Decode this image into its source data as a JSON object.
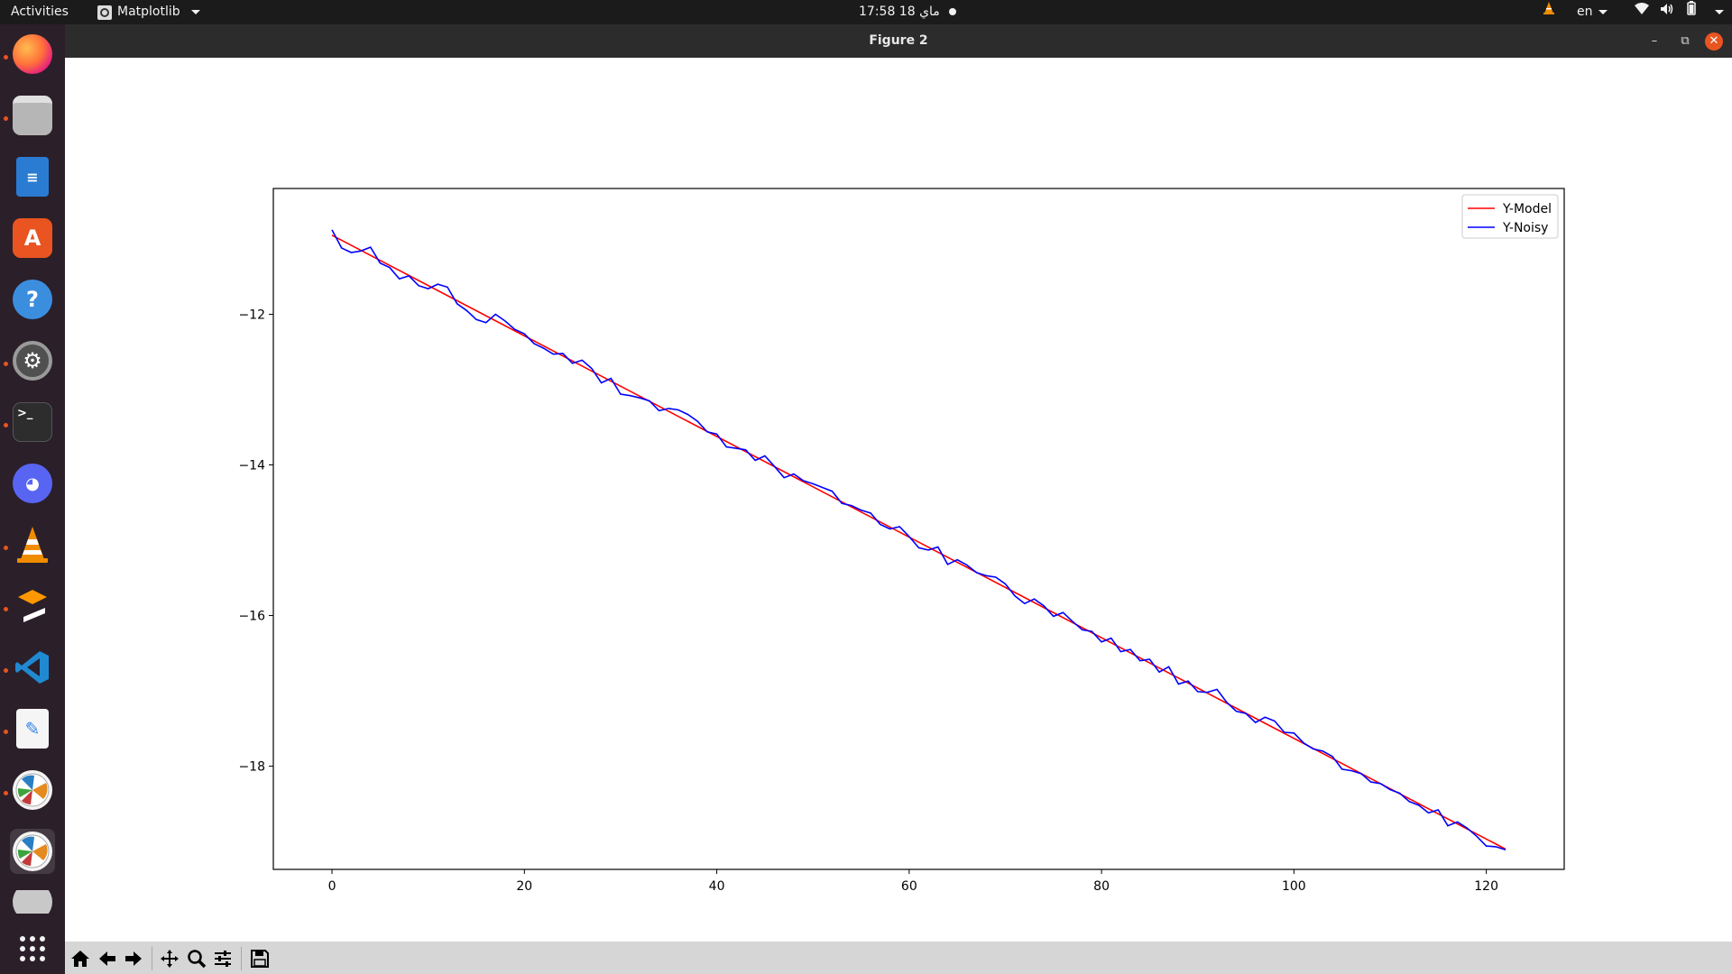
{
  "topbar": {
    "activities": "Activities",
    "app_menu": "Matplotlib",
    "clock": "17:58  ماي 18",
    "language": "en"
  },
  "dock": {
    "items": [
      {
        "name": "firefox",
        "running": true
      },
      {
        "name": "files",
        "running": true
      },
      {
        "name": "libreoffice-writer",
        "running": false
      },
      {
        "name": "ubuntu-software",
        "running": false
      },
      {
        "name": "help",
        "running": false
      },
      {
        "name": "settings",
        "running": true
      },
      {
        "name": "terminal",
        "running": true
      },
      {
        "name": "discord",
        "running": false
      },
      {
        "name": "vlc",
        "running": true
      },
      {
        "name": "sublime-text",
        "running": true
      },
      {
        "name": "vscode",
        "running": true
      },
      {
        "name": "text-editor",
        "running": true
      },
      {
        "name": "matplotlib-figure-1",
        "running": true
      },
      {
        "name": "matplotlib-figure-2",
        "running": true
      }
    ]
  },
  "window": {
    "title": "Figure 2"
  },
  "chart_data": {
    "type": "line",
    "title": "",
    "xlabel": "",
    "ylabel": "",
    "xlim": [
      -6.1,
      128.1
    ],
    "ylim": [
      -19.37,
      -10.33
    ],
    "xticks": [
      0,
      20,
      40,
      60,
      80,
      100,
      120
    ],
    "yticks": [
      -12,
      -14,
      -16,
      -18
    ],
    "xtick_labels": [
      "0",
      "20",
      "40",
      "60",
      "80",
      "100",
      "120"
    ],
    "ytick_labels": [
      "−12",
      "−14",
      "−16",
      "−18"
    ],
    "legend": {
      "position": "upper right"
    },
    "grid": false,
    "series": [
      {
        "name": "Y-Model",
        "color": "#ff0000",
        "x": [
          0,
          122
        ],
        "y": [
          -10.95,
          -19.1
        ]
      },
      {
        "name": "Y-Noisy",
        "color": "#0000ff",
        "x": [
          0,
          1,
          2,
          3,
          4,
          5,
          6,
          7,
          8,
          9,
          10,
          11,
          12,
          13,
          14,
          15,
          16,
          17,
          18,
          19,
          20,
          21,
          22,
          23,
          24,
          25,
          26,
          27,
          28,
          29,
          30,
          31,
          32,
          33,
          34,
          35,
          36,
          37,
          38,
          39,
          40,
          41,
          42,
          43,
          44,
          45,
          46,
          47,
          48,
          49,
          50,
          51,
          52,
          53,
          54,
          55,
          56,
          57,
          58,
          59,
          60,
          61,
          62,
          63,
          64,
          65,
          66,
          67,
          68,
          69,
          70,
          71,
          72,
          73,
          74,
          75,
          76,
          77,
          78,
          79,
          80,
          81,
          82,
          83,
          84,
          85,
          86,
          87,
          88,
          89,
          90,
          91,
          92,
          93,
          94,
          95,
          96,
          97,
          98,
          99,
          100,
          101,
          102,
          103,
          104,
          105,
          106,
          107,
          108,
          109,
          110,
          111,
          112,
          113,
          114,
          115,
          116,
          117,
          118,
          119,
          120,
          121,
          122
        ],
        "y": [
          -10.88,
          -11.12,
          -11.18,
          -11.16,
          -11.11,
          -11.32,
          -11.38,
          -11.53,
          -11.49,
          -11.62,
          -11.66,
          -11.6,
          -11.64,
          -11.86,
          -11.95,
          -12.07,
          -12.11,
          -12.0,
          -12.09,
          -12.2,
          -12.26,
          -12.39,
          -12.45,
          -12.53,
          -12.52,
          -12.65,
          -12.61,
          -12.72,
          -12.91,
          -12.85,
          -13.06,
          -13.08,
          -13.11,
          -13.15,
          -13.28,
          -13.25,
          -13.27,
          -13.33,
          -13.42,
          -13.56,
          -13.59,
          -13.76,
          -13.78,
          -13.8,
          -13.94,
          -13.88,
          -14.02,
          -14.17,
          -14.12,
          -14.21,
          -14.25,
          -14.3,
          -14.35,
          -14.51,
          -14.54,
          -14.6,
          -14.64,
          -14.79,
          -14.85,
          -14.82,
          -14.95,
          -15.1,
          -15.13,
          -15.09,
          -15.32,
          -15.26,
          -15.33,
          -15.43,
          -15.47,
          -15.49,
          -15.58,
          -15.74,
          -15.84,
          -15.78,
          -15.87,
          -16.01,
          -15.96,
          -16.08,
          -16.19,
          -16.21,
          -16.35,
          -16.3,
          -16.48,
          -16.45,
          -16.6,
          -16.58,
          -16.75,
          -16.68,
          -16.91,
          -16.87,
          -17.01,
          -17.02,
          -16.98,
          -17.15,
          -17.27,
          -17.3,
          -17.42,
          -17.35,
          -17.4,
          -17.55,
          -17.56,
          -17.69,
          -17.77,
          -17.8,
          -17.87,
          -18.04,
          -18.06,
          -18.1,
          -18.21,
          -18.23,
          -18.31,
          -18.36,
          -18.47,
          -18.52,
          -18.62,
          -18.58,
          -18.79,
          -18.74,
          -18.82,
          -18.93,
          -19.06,
          -19.07,
          -19.11
        ]
      }
    ]
  },
  "toolbar": {
    "buttons": [
      "home",
      "back",
      "forward",
      "pan",
      "zoom",
      "configure-subplots",
      "save"
    ]
  }
}
